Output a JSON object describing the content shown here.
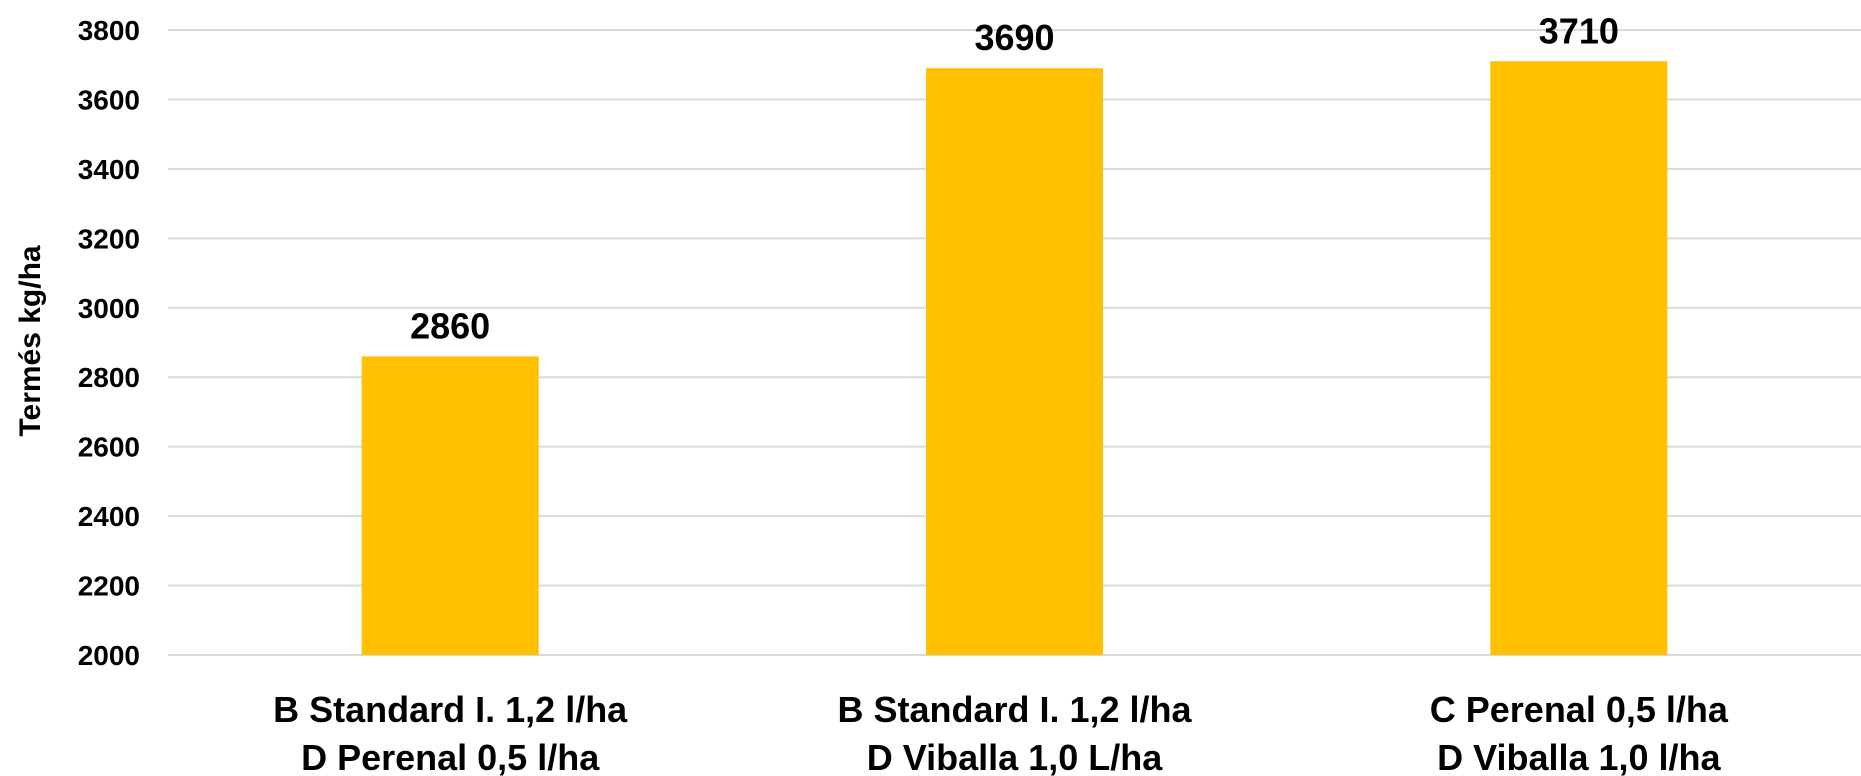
{
  "chart_data": {
    "type": "bar",
    "ylabel": "Termés kg/ha",
    "xlabel": "",
    "ylim": [
      2000,
      3800
    ],
    "yticks": [
      2000,
      2200,
      2400,
      2600,
      2800,
      3000,
      3200,
      3400,
      3600,
      3800
    ],
    "grid": true,
    "categories": [
      [
        "B Standard I. 1,2 l/ha",
        "D Perenal 0,5 l/ha"
      ],
      [
        "B Standard I. 1,2 l/ha",
        "D Viballa 1,0 L/ha"
      ],
      [
        "C Perenal 0,5 l/ha",
        "D Viballa 1,0 l/ha"
      ]
    ],
    "values": [
      2860,
      3690,
      3710
    ],
    "data_labels": [
      "2860",
      "3690",
      "3710"
    ],
    "bar_color": "#FFC000"
  }
}
